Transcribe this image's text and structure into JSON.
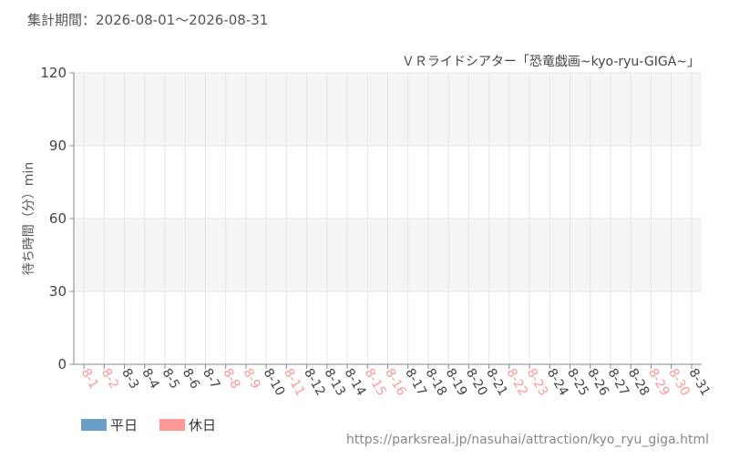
{
  "header": "集計期間：2026-08-01～2026-08-31",
  "footer": "https://parksreal.jp/nasuhai/attraction/kyo_ryu_giga.html",
  "chart_data": {
    "type": "bar",
    "title": "ＶＲライドシアター「恐竜戯画~kyo-ryu-GIGA~」",
    "y_label": "待ち時間（分）min",
    "categories": [
      "8-1",
      "8-2",
      "8-3",
      "8-4",
      "8-5",
      "8-6",
      "8-7",
      "8-8",
      "8-9",
      "8-10",
      "8-11",
      "8-12",
      "8-13",
      "8-14",
      "8-15",
      "8-16",
      "8-17",
      "8-18",
      "8-19",
      "8-20",
      "8-21",
      "8-22",
      "8-23",
      "8-24",
      "8-25",
      "8-26",
      "8-27",
      "8-28",
      "8-29",
      "8-30",
      "8-31"
    ],
    "category_colors": [
      "#f99",
      "#f99",
      "#444",
      "#444",
      "#444",
      "#444",
      "#444",
      "#f99",
      "#f99",
      "#444",
      "#f99",
      "#444",
      "#444",
      "#444",
      "#f99",
      "#f99",
      "#444",
      "#444",
      "#444",
      "#444",
      "#444",
      "#f99",
      "#f99",
      "#444",
      "#444",
      "#444",
      "#444",
      "#444",
      "#f99",
      "#f99",
      "#444"
    ],
    "series": [
      {
        "name": "平日",
        "color": "#6a9ec9",
        "values": [
          null,
          null,
          null,
          null,
          null,
          null,
          null,
          null,
          null,
          null,
          null,
          null,
          null,
          null,
          null,
          null,
          null,
          null,
          null,
          null,
          null,
          null,
          null,
          null,
          null,
          null,
          null,
          null,
          null,
          null,
          null
        ]
      },
      {
        "name": "休日",
        "color": "#f99",
        "values": [
          null,
          null,
          null,
          null,
          null,
          null,
          null,
          null,
          null,
          null,
          null,
          null,
          null,
          null,
          null,
          null,
          null,
          null,
          null,
          null,
          null,
          null,
          null,
          null,
          null,
          null,
          null,
          null,
          null,
          null,
          null
        ]
      }
    ],
    "ylim": [
      0,
      120
    ],
    "yticks": [
      0,
      30,
      60,
      90,
      120
    ],
    "grid": true
  }
}
